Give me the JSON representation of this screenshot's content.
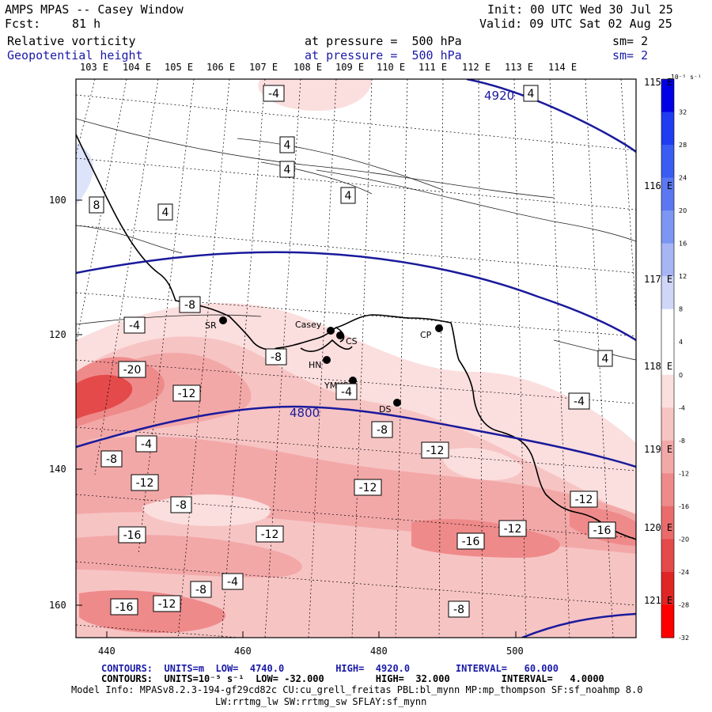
{
  "header": {
    "title": "AMPS MPAS -- Casey Window",
    "init": "Init: 00 UTC Wed 30 Jul 25",
    "fcst_label": "Fcst:",
    "fcst_value": "81 h",
    "valid": "Valid: 09 UTC Sat 02 Aug 25",
    "field1_name": "Relative vorticity",
    "field1_level": "at pressure =  500 hPa",
    "field1_sm": "sm= 2",
    "field2_name": "Geopotential height",
    "field2_level": "at pressure =  500 hPa",
    "field2_sm": "sm= 2"
  },
  "axes": {
    "top_lon_labels": [
      "103 E",
      "104 E",
      "105 E",
      "106 E",
      "107 E",
      "108 E",
      "109 E",
      "110 E",
      "111 E",
      "112 E",
      "113 E",
      "114 E"
    ],
    "right_lon_labels": [
      "115 E",
      "116 E",
      "117 E",
      "118 E",
      "119 E",
      "120 E",
      "121 E"
    ],
    "left_ticks": [
      "100",
      "120",
      "140",
      "160"
    ],
    "bottom_ticks": [
      "440",
      "460",
      "480",
      "500"
    ]
  },
  "colorbar": {
    "unit": "10⁻⁵ s⁻¹",
    "labels": [
      "32",
      "28",
      "24",
      "20",
      "16",
      "12",
      "8",
      "4",
      "0",
      "-4",
      "-8",
      "-12",
      "-16",
      "-20",
      "-24",
      "-28",
      "-32"
    ],
    "colors": [
      "#0000e6",
      "#1f3cf0",
      "#3a5cf2",
      "#5a78f2",
      "#7c96f3",
      "#a7b5f5",
      "#cfd6f8",
      "#ffffff",
      "#ffffff",
      "#fbdede",
      "#f7c4c4",
      "#f3a8a8",
      "#ef8a8a",
      "#ea6b6b",
      "#e44a4a",
      "#e02525",
      "#ff0000"
    ]
  },
  "stations": [
    {
      "id": "SR",
      "label": "SR"
    },
    {
      "id": "Casey",
      "label": "Casey"
    },
    {
      "id": "CS",
      "label": "CS"
    },
    {
      "id": "HN",
      "label": "HN"
    },
    {
      "id": "YMKS",
      "label": "YMKS"
    },
    {
      "id": "DS",
      "label": "DS"
    },
    {
      "id": "CP",
      "label": "CP"
    }
  ],
  "height_contour_labels": [
    "4920",
    "4800"
  ],
  "vorticity_labels": [
    "-4",
    "4",
    "4",
    "4",
    "4",
    "8",
    "4",
    "-8",
    "-4",
    "-8",
    "-20",
    "-12",
    "-4",
    "-8",
    "-4",
    "4",
    "-4",
    "-8",
    "-12",
    "-12",
    "-8",
    "-12",
    "-12",
    "-12",
    "-16",
    "-12",
    "-16",
    "-16",
    "-16",
    "-12",
    "-8",
    "-4",
    "-8"
  ],
  "footer": {
    "line1": "CONTOURS:  UNITS=m  LOW=  4740.0         HIGH=  4920.0        INTERVAL=   60.000",
    "line2": "CONTOURS:  UNITS=10⁻⁵ s⁻¹  LOW= -32.000         HIGH=  32.000         INTERVAL=   4.0000",
    "line3": "Model Info: MPASv8.2.3-194-gf29cd82c CU:cu_grell_freitas PBL:bl_mynn MP:mp_thompson SF:sf_noahmp 8.0",
    "line4": "LW:rrtmg_lw SW:rrtmg_sw SFLAY:sf_mynn"
  },
  "colors": {
    "height_contour": "#1a1a9c",
    "frame": "#000000"
  }
}
